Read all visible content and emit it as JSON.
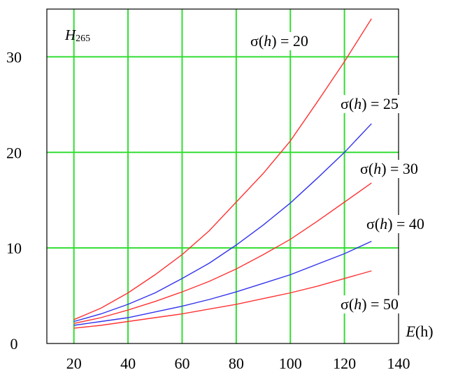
{
  "chart_data": {
    "type": "line",
    "title": "H",
    "title_subscript": "265",
    "xlabel": "E(h)",
    "ylabel": "",
    "xlim": [
      10,
      140
    ],
    "ylim": [
      0,
      35
    ],
    "x_ticks": [
      20,
      40,
      60,
      80,
      100,
      120,
      140
    ],
    "y_ticks": [
      0,
      10,
      20,
      30
    ],
    "grid": true,
    "grid_color": "#33dd33",
    "series": [
      {
        "name": "σ(h) = 20",
        "color": "#ff3333",
        "x": [
          20,
          30,
          40,
          50,
          60,
          70,
          80,
          90,
          100,
          110,
          120,
          130
        ],
        "y": [
          2.5,
          3.7,
          5.3,
          7.2,
          9.3,
          11.8,
          14.8,
          17.8,
          21.2,
          25.3,
          29.5,
          34.0
        ]
      },
      {
        "name": "σ(h) = 25",
        "color": "#3333ee",
        "x": [
          20,
          30,
          40,
          50,
          60,
          70,
          80,
          90,
          100,
          110,
          120,
          130
        ],
        "y": [
          2.3,
          3.1,
          4.1,
          5.3,
          6.8,
          8.4,
          10.3,
          12.4,
          14.7,
          17.3,
          20.0,
          23.0
        ]
      },
      {
        "name": "σ(h) = 30",
        "color": "#ff3333",
        "x": [
          20,
          30,
          40,
          50,
          60,
          70,
          80,
          90,
          100,
          110,
          120,
          130
        ],
        "y": [
          2.1,
          2.7,
          3.5,
          4.4,
          5.4,
          6.5,
          7.8,
          9.3,
          10.9,
          12.8,
          14.8,
          16.8
        ]
      },
      {
        "name": "σ(h) = 40",
        "color": "#3333ee",
        "x": [
          20,
          30,
          40,
          50,
          60,
          70,
          80,
          90,
          100,
          110,
          120,
          130
        ],
        "y": [
          1.9,
          2.3,
          2.7,
          3.3,
          3.9,
          4.6,
          5.4,
          6.3,
          7.2,
          8.3,
          9.4,
          10.7
        ]
      },
      {
        "name": "σ(h) = 50",
        "color": "#ff3333",
        "x": [
          20,
          30,
          40,
          50,
          60,
          70,
          80,
          90,
          100,
          110,
          120,
          130
        ],
        "y": [
          1.6,
          1.9,
          2.3,
          2.7,
          3.1,
          3.6,
          4.1,
          4.7,
          5.3,
          6.0,
          6.8,
          7.6
        ]
      }
    ]
  }
}
